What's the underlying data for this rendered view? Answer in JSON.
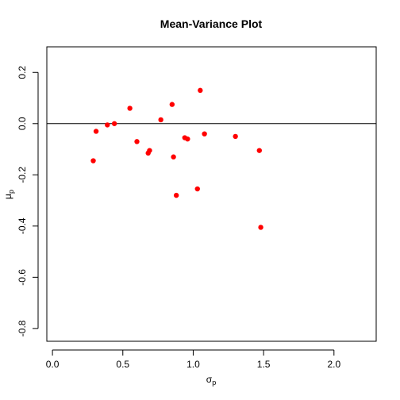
{
  "chart_data": {
    "type": "scatter",
    "title": "Mean-Variance Plot",
    "xlabel": {
      "main": "σ",
      "sub": "p"
    },
    "ylabel": {
      "main": "μ",
      "sub": "p"
    },
    "xlim": [
      -0.04,
      2.3
    ],
    "ylim": [
      -0.85,
      0.3
    ],
    "xticks": [
      0.0,
      0.5,
      1.0,
      1.5,
      2.0
    ],
    "xtick_labels": [
      "0.0",
      "0.5",
      "1.0",
      "1.5",
      "2.0"
    ],
    "yticks": [
      -0.8,
      -0.6,
      -0.4,
      -0.2,
      0.0,
      0.2
    ],
    "ytick_labels": [
      "-0.8",
      "-0.6",
      "-0.4",
      "-0.2",
      "0.0",
      "0.2"
    ],
    "hline": 0.0,
    "grid": false,
    "point_color": "#ff0000",
    "points": [
      [
        0.29,
        -0.145
      ],
      [
        0.31,
        -0.03
      ],
      [
        0.39,
        -0.005
      ],
      [
        0.44,
        0.0
      ],
      [
        0.55,
        0.06
      ],
      [
        0.6,
        -0.07
      ],
      [
        0.68,
        -0.115
      ],
      [
        0.69,
        -0.105
      ],
      [
        0.77,
        0.015
      ],
      [
        0.85,
        0.075
      ],
      [
        0.86,
        -0.13
      ],
      [
        0.88,
        -0.28
      ],
      [
        0.94,
        -0.055
      ],
      [
        0.96,
        -0.06
      ],
      [
        1.03,
        -0.255
      ],
      [
        1.05,
        0.13
      ],
      [
        1.08,
        -0.04
      ],
      [
        1.3,
        -0.05
      ],
      [
        1.47,
        -0.105
      ],
      [
        1.48,
        -0.405
      ]
    ]
  }
}
